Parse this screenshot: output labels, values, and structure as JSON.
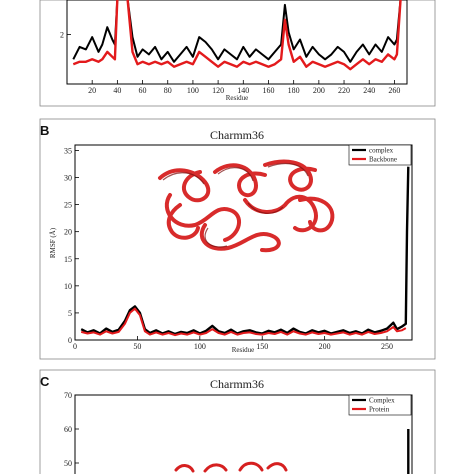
{
  "panels": [
    {
      "label": "",
      "chart_data": {
        "type": "line",
        "title": "",
        "xlabel": "Residue",
        "ylabel": "",
        "xlim": [
          0,
          270
        ],
        "ylim": [
          0,
          3.4
        ],
        "xticks": [
          20,
          40,
          60,
          80,
          100,
          120,
          140,
          160,
          180,
          200,
          220,
          240,
          260
        ],
        "xtick_labels": [
          "20",
          "40",
          "60",
          "80",
          "100",
          "120",
          "140",
          "160",
          "180",
          "200",
          "220",
          "240",
          "260"
        ],
        "yticks": [
          2
        ],
        "ytick_labels": [
          "2"
        ],
        "grid": false,
        "legend": null,
        "series": [
          {
            "name": "",
            "color": "#000000",
            "x": [
              5,
              10,
              15,
              20,
              25,
              28,
              32,
              36,
              38,
              40,
              44,
              48,
              52,
              56,
              60,
              65,
              70,
              75,
              80,
              85,
              90,
              95,
              100,
              105,
              110,
              115,
              120,
              125,
              130,
              135,
              140,
              145,
              150,
              155,
              160,
              165,
              170,
              173,
              176,
              180,
              185,
              190,
              195,
              200,
              205,
              210,
              215,
              220,
              225,
              230,
              235,
              240,
              245,
              250,
              255,
              260,
              262,
              265
            ],
            "y": [
              1.0,
              1.5,
              1.4,
              1.9,
              1.3,
              1.6,
              2.3,
              1.8,
              1.6,
              3.5,
              3.5,
              3.5,
              1.9,
              1.1,
              1.4,
              1.2,
              1.5,
              1.0,
              1.3,
              0.9,
              1.2,
              1.5,
              1.1,
              1.9,
              1.7,
              1.4,
              1.0,
              1.4,
              1.2,
              1.0,
              1.5,
              1.1,
              1.4,
              1.2,
              1.0,
              1.3,
              1.6,
              3.2,
              2.1,
              1.4,
              1.8,
              1.1,
              1.5,
              1.2,
              1.0,
              1.2,
              1.5,
              1.3,
              0.9,
              1.3,
              1.6,
              1.2,
              1.6,
              1.3,
              1.9,
              1.6,
              1.8,
              3.5
            ]
          },
          {
            "name": "",
            "color": "#e31a1c",
            "x": [
              5,
              10,
              15,
              20,
              25,
              28,
              32,
              36,
              38,
              40,
              44,
              48,
              52,
              56,
              60,
              65,
              70,
              75,
              80,
              85,
              90,
              95,
              100,
              105,
              110,
              115,
              120,
              125,
              130,
              135,
              140,
              145,
              150,
              155,
              160,
              165,
              170,
              173,
              176,
              180,
              185,
              190,
              195,
              200,
              205,
              210,
              215,
              220,
              225,
              230,
              235,
              240,
              245,
              250,
              255,
              260,
              262,
              265
            ],
            "y": [
              0.8,
              0.9,
              0.9,
              1.0,
              0.9,
              1.0,
              1.3,
              1.1,
              1.0,
              3.5,
              3.5,
              3.5,
              1.3,
              0.8,
              0.9,
              0.8,
              0.9,
              0.8,
              0.9,
              0.7,
              0.8,
              0.9,
              0.8,
              1.3,
              1.1,
              0.9,
              0.7,
              0.9,
              0.8,
              0.7,
              0.9,
              0.8,
              0.9,
              0.8,
              0.7,
              0.8,
              1.0,
              2.6,
              1.6,
              0.9,
              1.1,
              0.7,
              0.9,
              0.8,
              0.7,
              0.8,
              0.9,
              0.8,
              0.6,
              0.8,
              1.0,
              0.8,
              1.0,
              0.9,
              1.2,
              1.0,
              1.2,
              3.5
            ]
          }
        ]
      }
    },
    {
      "label": "B",
      "chart_data": {
        "type": "line",
        "title": "Charmm36",
        "xlabel": "Residue",
        "ylabel": "RMSF (Å)",
        "xlim": [
          0,
          270
        ],
        "ylim": [
          0,
          36
        ],
        "xticks": [
          0,
          50,
          100,
          150,
          200,
          250
        ],
        "xtick_labels": [
          "0",
          "50",
          "100",
          "150",
          "200",
          "250"
        ],
        "yticks": [
          0,
          5,
          10,
          15,
          20,
          25,
          30,
          35
        ],
        "ytick_labels": [
          "0",
          "5",
          "10",
          "15",
          "20",
          "25",
          "30",
          "35"
        ],
        "grid": false,
        "legend": "top-right",
        "series": [
          {
            "name": "complex",
            "color": "#000000",
            "x": [
              5,
              10,
              15,
              20,
              25,
              30,
              35,
              40,
              44,
              48,
              52,
              56,
              60,
              65,
              70,
              75,
              80,
              85,
              90,
              95,
              100,
              105,
              110,
              115,
              120,
              125,
              130,
              135,
              140,
              145,
              150,
              155,
              160,
              165,
              170,
              175,
              180,
              185,
              190,
              195,
              200,
              205,
              210,
              215,
              220,
              225,
              230,
              235,
              240,
              245,
              250,
              255,
              258,
              262,
              265,
              266,
              267
            ],
            "y": [
              2.0,
              1.4,
              1.8,
              1.2,
              2.1,
              1.5,
              1.9,
              3.5,
              5.5,
              6.2,
              5.0,
              2.0,
              1.3,
              1.8,
              1.2,
              1.6,
              1.1,
              1.5,
              1.3,
              1.8,
              1.2,
              1.7,
              2.6,
              1.6,
              1.3,
              1.9,
              1.2,
              1.6,
              1.8,
              1.4,
              1.2,
              1.7,
              1.4,
              1.9,
              1.3,
              2.1,
              1.5,
              1.2,
              1.8,
              1.4,
              1.7,
              1.2,
              1.5,
              1.8,
              1.3,
              1.6,
              1.2,
              1.9,
              1.4,
              1.7,
              2.1,
              3.2,
              2.0,
              2.5,
              3.0,
              20.0,
              32.0
            ]
          },
          {
            "name": "Backbone",
            "color": "#e31a1c",
            "x": [
              5,
              10,
              15,
              20,
              25,
              30,
              35,
              40,
              44,
              48,
              52,
              56,
              60,
              65,
              70,
              75,
              80,
              85,
              90,
              95,
              100,
              105,
              110,
              115,
              120,
              125,
              130,
              135,
              140,
              145,
              150,
              155,
              160,
              165,
              170,
              175,
              180,
              185,
              190,
              195,
              200,
              205,
              210,
              215,
              220,
              225,
              230,
              235,
              240,
              245,
              250,
              255,
              258,
              262,
              265
            ],
            "y": [
              1.5,
              1.2,
              1.4,
              1.0,
              1.6,
              1.2,
              1.5,
              3.0,
              5.0,
              5.8,
              4.6,
              1.6,
              1.0,
              1.4,
              1.0,
              1.3,
              0.9,
              1.2,
              1.0,
              1.4,
              1.0,
              1.3,
              2.0,
              1.3,
              1.0,
              1.5,
              1.0,
              1.3,
              1.4,
              1.1,
              1.0,
              1.3,
              1.1,
              1.5,
              1.0,
              1.6,
              1.2,
              1.0,
              1.4,
              1.1,
              1.3,
              1.0,
              1.2,
              1.4,
              1.0,
              1.3,
              1.0,
              1.5,
              1.1,
              1.3,
              1.6,
              2.4,
              1.6,
              1.8,
              2.2
            ]
          }
        ]
      }
    },
    {
      "label": "C",
      "chart_data": {
        "type": "line",
        "title": "Charmm36",
        "xlabel": "",
        "ylabel": "",
        "xlim": [
          0,
          270
        ],
        "ylim": [
          45,
          70
        ],
        "yticks": [
          50,
          60,
          70
        ],
        "ytick_labels": [
          "50",
          "60",
          "70"
        ],
        "grid": false,
        "legend": "top-right",
        "series": [
          {
            "name": "Complex",
            "color": "#000000",
            "x": [
              267,
              267
            ],
            "y": [
              44,
              60
            ]
          },
          {
            "name": "Protein",
            "color": "#e31a1c",
            "x": [],
            "y": []
          }
        ]
      }
    }
  ]
}
